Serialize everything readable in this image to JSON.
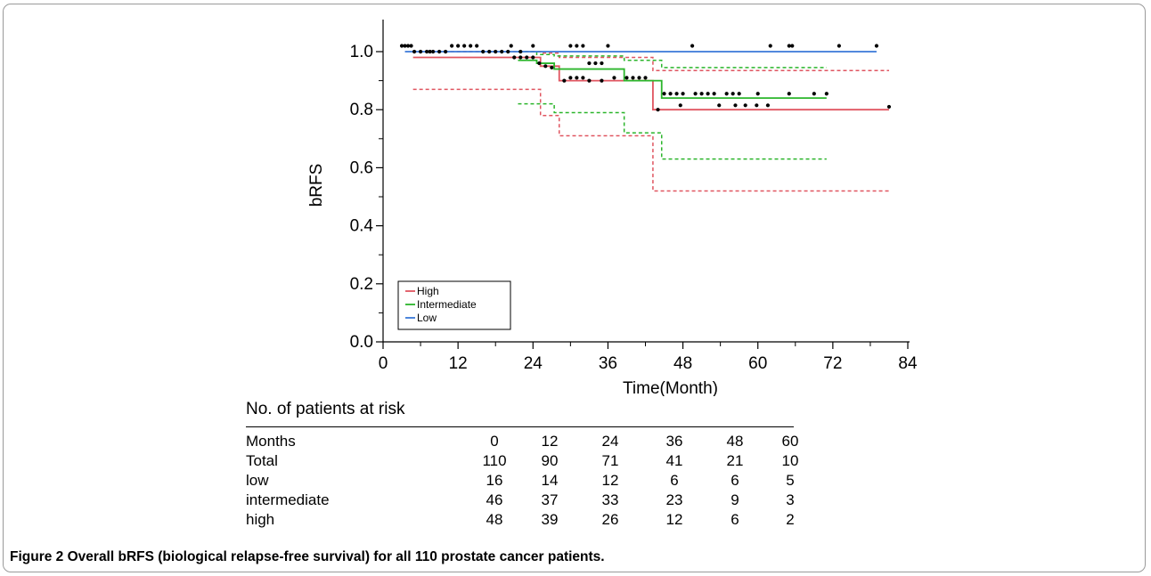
{
  "chart_data": {
    "type": "line",
    "subtype": "kaplan-meier step curves with confidence bands",
    "xlabel": "Time(Month)",
    "ylabel": "bRFS",
    "xlim": [
      0,
      84
    ],
    "ylim": [
      0,
      1.05
    ],
    "xticks": [
      0,
      12,
      24,
      36,
      48,
      60,
      72,
      84
    ],
    "yticks": [
      0.0,
      0.2,
      0.4,
      0.6,
      0.8,
      1.0
    ],
    "ytick_labels": [
      "0.0",
      "0.2",
      "0.4",
      "0.6",
      "0.8",
      "1.0"
    ],
    "legend_position": "bottom-left",
    "grid": false,
    "series": [
      {
        "name": "High",
        "color": "#e05560",
        "steps": [
          [
            4.8,
            0.98
          ],
          [
            25.2,
            0.95
          ],
          [
            28.2,
            0.9
          ],
          [
            43.2,
            0.8
          ],
          [
            81,
            0.8
          ]
        ],
        "ci_upper": [
          [
            4.8,
            1.0
          ],
          [
            25.2,
            0.995
          ],
          [
            28.2,
            0.98
          ],
          [
            43.2,
            0.935
          ],
          [
            81,
            0.935
          ]
        ],
        "ci_lower": [
          [
            4.8,
            0.87
          ],
          [
            25.2,
            0.78
          ],
          [
            28.2,
            0.71
          ],
          [
            43.2,
            0.52
          ],
          [
            81,
            0.52
          ]
        ],
        "censored": [
          [
            21,
            0.98
          ],
          [
            22,
            0.98
          ],
          [
            23,
            0.98
          ],
          [
            24,
            0.98
          ],
          [
            26,
            0.95
          ],
          [
            29,
            0.9
          ],
          [
            33,
            0.9
          ],
          [
            35,
            0.9
          ],
          [
            44,
            0.8
          ],
          [
            81,
            0.81
          ]
        ]
      },
      {
        "name": "Intermediate",
        "color": "#2bb52b",
        "steps": [
          [
            21.6,
            0.97
          ],
          [
            24.6,
            0.96
          ],
          [
            27.4,
            0.94
          ],
          [
            38.6,
            0.9
          ],
          [
            44.6,
            0.84
          ],
          [
            71,
            0.84
          ]
        ],
        "ci_upper": [
          [
            21.6,
            1.0
          ],
          [
            24.6,
            0.99
          ],
          [
            27.4,
            0.985
          ],
          [
            38.6,
            0.97
          ],
          [
            44.6,
            0.945
          ],
          [
            71,
            0.945
          ]
        ],
        "ci_lower": [
          [
            21.6,
            0.82
          ],
          [
            24.6,
            0.82
          ],
          [
            27.4,
            0.79
          ],
          [
            38.6,
            0.72
          ],
          [
            44.6,
            0.63
          ],
          [
            71,
            0.63
          ]
        ],
        "censored": [
          [
            25,
            0.96
          ],
          [
            27,
            0.945
          ],
          [
            30,
            0.91
          ],
          [
            31,
            0.91
          ],
          [
            32,
            0.91
          ],
          [
            33,
            0.96
          ],
          [
            34,
            0.96
          ],
          [
            35,
            0.96
          ],
          [
            37,
            0.91
          ],
          [
            39,
            0.91
          ],
          [
            40,
            0.91
          ],
          [
            41,
            0.91
          ],
          [
            42,
            0.91
          ],
          [
            45,
            0.855
          ],
          [
            46,
            0.855
          ],
          [
            47,
            0.855
          ],
          [
            48,
            0.855
          ],
          [
            50,
            0.855
          ],
          [
            51,
            0.855
          ],
          [
            52,
            0.855
          ],
          [
            53,
            0.855
          ],
          [
            55,
            0.855
          ],
          [
            56,
            0.855
          ],
          [
            57,
            0.855
          ],
          [
            60,
            0.855
          ],
          [
            65,
            0.855
          ],
          [
            69,
            0.855
          ],
          [
            71,
            0.855
          ],
          [
            47.6,
            0.815
          ],
          [
            53.8,
            0.815
          ],
          [
            56.4,
            0.815
          ],
          [
            58,
            0.815
          ],
          [
            59.8,
            0.815
          ],
          [
            61.6,
            0.815
          ]
        ]
      },
      {
        "name": "Low",
        "color": "#3a78d8",
        "steps": [
          [
            3.5,
            1.0
          ],
          [
            79,
            1.0
          ]
        ],
        "censored": [
          [
            3,
            1.02
          ],
          [
            3.5,
            1.02
          ],
          [
            4,
            1.02
          ],
          [
            4.5,
            1.02
          ],
          [
            5,
            1.0
          ],
          [
            6,
            1.0
          ],
          [
            7,
            1.0
          ],
          [
            7.5,
            1.0
          ],
          [
            8,
            1.0
          ],
          [
            9,
            1.0
          ],
          [
            10,
            1.0
          ],
          [
            11,
            1.02
          ],
          [
            12,
            1.02
          ],
          [
            13,
            1.02
          ],
          [
            14,
            1.02
          ],
          [
            15,
            1.02
          ],
          [
            16,
            1.0
          ],
          [
            17,
            1.0
          ],
          [
            18,
            1.0
          ],
          [
            19,
            1.0
          ],
          [
            20,
            1.0
          ],
          [
            20.5,
            1.02
          ],
          [
            22,
            1.0
          ],
          [
            24,
            1.02
          ],
          [
            30,
            1.02
          ],
          [
            31,
            1.02
          ],
          [
            32,
            1.02
          ],
          [
            36,
            1.02
          ],
          [
            49.5,
            1.02
          ],
          [
            62,
            1.02
          ],
          [
            65,
            1.02
          ],
          [
            65.5,
            1.02
          ],
          [
            73,
            1.02
          ],
          [
            79,
            1.02
          ]
        ]
      }
    ]
  },
  "risk_table": {
    "title": "No. of patients at risk",
    "header": [
      "Months",
      "0",
      "12",
      "24",
      "36",
      "48",
      "60"
    ],
    "rows": [
      [
        "Total",
        "110",
        "90",
        "71",
        "41",
        "21",
        "10"
      ],
      [
        "low",
        "16",
        "14",
        "12",
        "6",
        "6",
        "5"
      ],
      [
        "intermediate",
        "46",
        "37",
        "33",
        "23",
        "9",
        "3"
      ],
      [
        "high",
        "48",
        "39",
        "26",
        "12",
        "6",
        "2"
      ]
    ]
  },
  "caption": {
    "label": "Figure 2",
    "text": "Overall bRFS (biological relapse-free survival) for all 110 prostate cancer patients."
  }
}
